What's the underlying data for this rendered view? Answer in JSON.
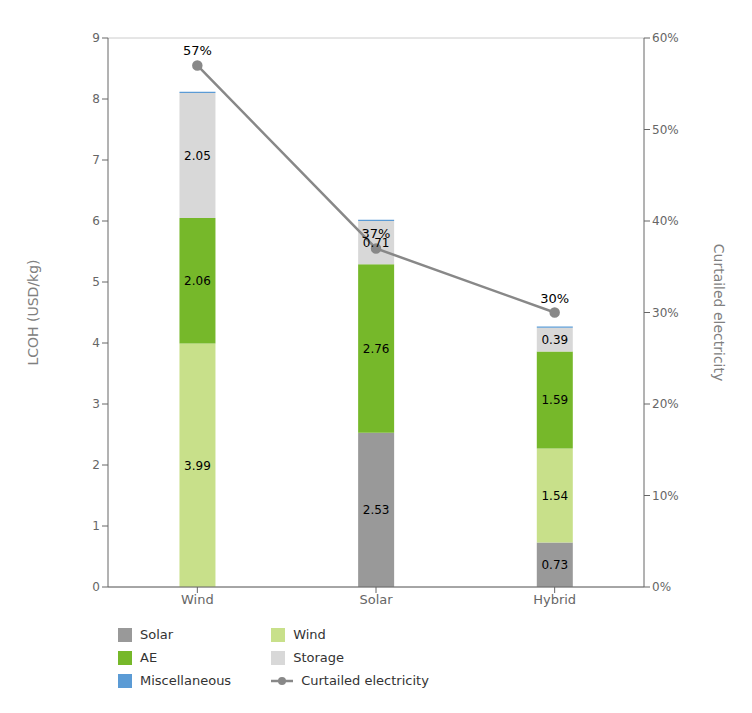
{
  "chart_data": {
    "type": "bar",
    "stacked": true,
    "categories": [
      "Wind",
      "Solar",
      "Hybrid"
    ],
    "series": [
      {
        "name": "Solar",
        "type": "bar",
        "color": "#999999",
        "values": [
          0.0,
          2.53,
          0.73
        ],
        "data_labels": true
      },
      {
        "name": "Wind",
        "type": "bar",
        "color": "#c8e08a",
        "values": [
          3.99,
          0.0,
          1.54
        ],
        "data_labels": true
      },
      {
        "name": "AE",
        "type": "bar",
        "color": "#76b82a",
        "values": [
          2.06,
          2.76,
          1.59
        ],
        "data_labels": true
      },
      {
        "name": "Storage",
        "type": "bar",
        "color": "#d8d8d8",
        "values": [
          2.05,
          0.71,
          0.39
        ],
        "data_labels": true
      },
      {
        "name": "Miscellaneous",
        "type": "bar",
        "color": "#5b9bd5",
        "values": [
          0.02,
          0.02,
          0.02
        ],
        "data_labels": false
      },
      {
        "name": "Curtailed electricity",
        "type": "line",
        "axis": "y2",
        "color": "#888888",
        "marker": "circle",
        "values": [
          0.57,
          0.37,
          0.3
        ],
        "value_labels": [
          "57%",
          "37%",
          "30%"
        ],
        "data_labels": true
      }
    ],
    "ylabel": "LCOH (USD/kg)",
    "y2label": "Curtailed electricity",
    "ylim": [
      0.0,
      9.0
    ],
    "yticks": [
      0,
      1,
      2,
      3,
      4,
      5,
      6,
      7,
      8,
      9
    ],
    "y2lim": [
      0.0,
      0.6
    ],
    "y2ticks": [
      {
        "value": 0.0,
        "label": "0%"
      },
      {
        "value": 0.1,
        "label": "10%"
      },
      {
        "value": 0.2,
        "label": "20%"
      },
      {
        "value": 0.3,
        "label": "30%"
      },
      {
        "value": 0.4,
        "label": "40%"
      },
      {
        "value": 0.5,
        "label": "50%"
      },
      {
        "value": 0.6,
        "label": "60%"
      }
    ],
    "grid": true,
    "legend": "bottom"
  }
}
